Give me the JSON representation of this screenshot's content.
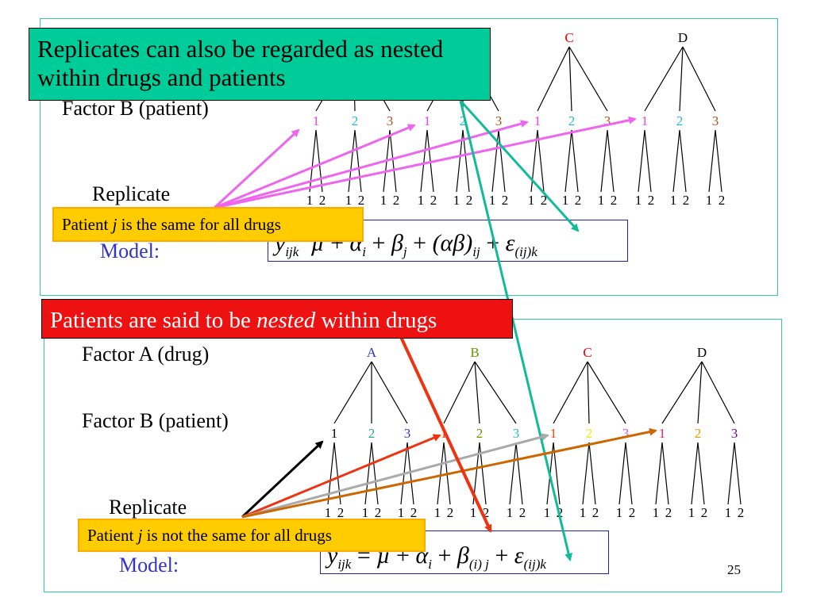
{
  "slide_number": "25",
  "top": {
    "factor_b_label": "Factor B (patient)",
    "replicate_label": "Replicate",
    "model_label": "Model:",
    "drugs": [
      {
        "letter": "C",
        "color": "#ee0000"
      },
      {
        "letter": "D",
        "color": "#000000"
      }
    ],
    "patients": [
      {
        "label": "1",
        "color": "#ee44ee"
      },
      {
        "label": "2",
        "color": "#22bbcc"
      },
      {
        "label": "3",
        "color": "#aa5522"
      },
      {
        "label": "1",
        "color": "#ee44ee"
      },
      {
        "label": "2",
        "color": "#22bbcc"
      },
      {
        "label": "3",
        "color": "#aa5522"
      },
      {
        "label": "1",
        "color": "#ee44ee"
      },
      {
        "label": "2",
        "color": "#22bbcc"
      },
      {
        "label": "3",
        "color": "#aa5522"
      },
      {
        "label": "1",
        "color": "#ee44ee"
      },
      {
        "label": "2",
        "color": "#22bbcc"
      },
      {
        "label": "3",
        "color": "#aa5522"
      }
    ],
    "replicates": [
      "1",
      "2"
    ],
    "formula": {
      "y": "y",
      "y_sub": "ijk",
      "mu": "µ",
      "plus": "+",
      "alpha": "α",
      "alpha_sub": "i",
      "beta": "β",
      "beta_sub": "j",
      "ab": "(αβ)",
      "ab_sub": "ij",
      "eps": "ε",
      "eps_sub": "(ij)k"
    },
    "callout_replicates": "Replicates can also be regarded as nested within drugs and patients",
    "callout_patient_prefix": "Patient ",
    "callout_patient_j": "j",
    "callout_patient_suffix": " is the same for all drugs"
  },
  "bottom": {
    "factor_a_label": "Factor A (drug)",
    "factor_b_label": "Factor B (patient)",
    "replicate_label": "Replicate",
    "model_label": "Model:",
    "drugs": [
      {
        "letter": "A",
        "color": "#3333cc"
      },
      {
        "letter": "B",
        "color": "#669900"
      },
      {
        "letter": "C",
        "color": "#ee0000"
      },
      {
        "letter": "D",
        "color": "#000000"
      }
    ],
    "patients": [
      {
        "label": "1",
        "color": "#000000"
      },
      {
        "label": "2",
        "color": "#22aa88"
      },
      {
        "label": "3",
        "color": "#3333cc"
      },
      {
        "label": "1",
        "color": "#ee3300"
      },
      {
        "label": "2",
        "color": "#669900"
      },
      {
        "label": "3",
        "color": "#22bbdd"
      },
      {
        "label": "1",
        "color": "#ff4400"
      },
      {
        "label": "2",
        "color": "#eeee00"
      },
      {
        "label": "3",
        "color": "#ee44ee"
      },
      {
        "label": "1",
        "color": "#ee2266"
      },
      {
        "label": "2",
        "color": "#ee9900"
      },
      {
        "label": "3",
        "color": "#880088"
      }
    ],
    "replicates": [
      "1",
      "2"
    ],
    "formula": {
      "y": "y",
      "y_sub": "ijk",
      "eq": "=",
      "mu": "µ",
      "plus": "+",
      "alpha": "α",
      "alpha_sub": "i",
      "beta": "β",
      "beta_sub": "(i) j",
      "eps": "ε",
      "eps_sub": "(ij)k"
    },
    "callout_nested_prefix": "Patients are said to be ",
    "callout_nested_word": "nested",
    "callout_nested_suffix": " within drugs",
    "callout_patient_prefix": "Patient ",
    "callout_patient_j": "j",
    "callout_patient_suffix": " is not the same for all drugs"
  },
  "colors": {
    "panel_border": "#33cc99",
    "green_callout": "#00cc99",
    "red_callout": "#ee1111",
    "yellow_callout": "#ffcc00",
    "magenta_arrow": "#ee66ee",
    "teal_arrow": "#11bb99",
    "black_arrow": "#000000",
    "red_arrow": "#ee3311",
    "gray_arrow": "#aaaaaa",
    "brown_arrow": "#cc6600"
  }
}
